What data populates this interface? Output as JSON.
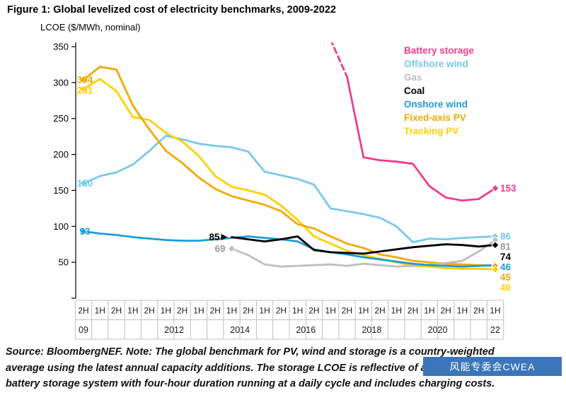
{
  "chart_data": {
    "type": "line",
    "title": "Figure 1: Global levelized cost of electricity benchmarks, 2009-2022",
    "ylabel": "LCOE ($/MWh, nominal)",
    "ylim": [
      0,
      350
    ],
    "yticks": [
      50,
      100,
      150,
      200,
      250,
      300,
      350
    ],
    "grid": false,
    "legend_position": "top-right",
    "x_categories": [
      "2H",
      "1H",
      "2H",
      "1H",
      "2H",
      "1H",
      "2H",
      "1H",
      "2H",
      "1H",
      "2H",
      "1H",
      "2H",
      "1H",
      "2H",
      "1H",
      "2H",
      "1H",
      "2H",
      "1H",
      "2H",
      "1H",
      "2H",
      "1H",
      "2H",
      "1H"
    ],
    "year_labels": [
      {
        "label": "09",
        "span": [
          0,
          0
        ]
      },
      {
        "label": "2012",
        "span": [
          5,
          6
        ]
      },
      {
        "label": "2014",
        "span": [
          9,
          10
        ]
      },
      {
        "label": "2016",
        "span": [
          13,
          14
        ]
      },
      {
        "label": "2018",
        "span": [
          17,
          18
        ]
      },
      {
        "label": "2020",
        "span": [
          21,
          22
        ]
      },
      {
        "label": "22",
        "span": [
          25,
          25
        ]
      }
    ],
    "series": [
      {
        "name": "Battery storage",
        "color": "#EE3D8F",
        "start_label": null,
        "end_label": "153",
        "dashed_until_index": 16,
        "values": [
          null,
          null,
          null,
          null,
          null,
          null,
          null,
          null,
          null,
          null,
          null,
          null,
          null,
          null,
          null,
          360,
          308,
          196,
          192,
          190,
          187,
          156,
          140,
          136,
          138,
          153
        ]
      },
      {
        "name": "Offshore wind",
        "color": "#79C9E8",
        "start_label": "160",
        "end_label": "86",
        "values": [
          160,
          170,
          175,
          186,
          205,
          226,
          221,
          215,
          212,
          210,
          204,
          176,
          171,
          166,
          158,
          125,
          121,
          117,
          112,
          100,
          78,
          83,
          82,
          84,
          85,
          86
        ]
      },
      {
        "name": "Gas",
        "color": "#BFBFBF",
        "start_label": "69",
        "end_label": "81",
        "values": [
          null,
          null,
          null,
          null,
          null,
          null,
          null,
          null,
          null,
          69,
          60,
          47,
          44,
          45,
          46,
          47,
          45,
          48,
          46,
          44,
          45,
          47,
          49,
          52,
          65,
          81
        ]
      },
      {
        "name": "Coal",
        "color": "#000000",
        "start_label": "85",
        "end_label": "74",
        "values": [
          null,
          null,
          null,
          null,
          null,
          null,
          null,
          null,
          null,
          85,
          82,
          79,
          82,
          86,
          67,
          64,
          63,
          62,
          65,
          68,
          71,
          73,
          75,
          74,
          72,
          74
        ]
      },
      {
        "name": "Onshore wind",
        "color": "#1B9DD9",
        "start_label": "93",
        "end_label": "46",
        "values": [
          93,
          90,
          88,
          85,
          83,
          81,
          80,
          80,
          82,
          84,
          86,
          84,
          82,
          79,
          68,
          64,
          61,
          57,
          54,
          51,
          48,
          46,
          45,
          44,
          45,
          46
        ]
      },
      {
        "name": "Fixed-axis PV",
        "color": "#F2A900",
        "start_label": "304",
        "end_label": "45",
        "values": [
          304,
          322,
          318,
          268,
          235,
          205,
          188,
          168,
          152,
          142,
          136,
          130,
          121,
          103,
          97,
          86,
          76,
          70,
          61,
          57,
          52,
          50,
          48,
          47,
          46,
          45
        ]
      },
      {
        "name": "Tracking PV",
        "color": "#FFD100",
        "start_label": "291",
        "end_label": "40",
        "values": [
          291,
          305,
          288,
          252,
          248,
          230,
          218,
          198,
          170,
          155,
          150,
          144,
          129,
          109,
          86,
          76,
          66,
          60,
          55,
          50,
          45,
          44,
          42,
          41,
          41,
          40
        ]
      }
    ]
  },
  "source": {
    "lines": [
      "Source: BloombergNEF. Note: The global benchmark for PV, wind and storage is a country-weighted",
      "average using the latest annual capacity additions. The storage LCOE is reflective of an average lithium-ion",
      "battery storage system with four-hour duration running at a daily cycle and includes charging costs."
    ]
  },
  "watermark": {
    "text": "风能专委会CWEA",
    "background": "#3A76B8"
  }
}
